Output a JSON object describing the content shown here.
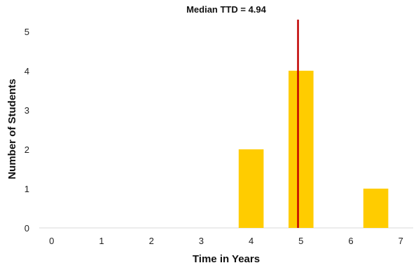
{
  "chart_data": {
    "type": "bar",
    "title": "Median TTD = 4.94",
    "xlabel": "Time in Years",
    "ylabel": "Number of Students",
    "xlim": [
      -0.25,
      7.25
    ],
    "ylim": [
      0,
      5.3
    ],
    "x_ticks": [
      0,
      1,
      2,
      3,
      4,
      5,
      6,
      7
    ],
    "y_ticks": [
      0,
      1,
      2,
      3,
      4,
      5
    ],
    "bar_width": 0.5,
    "series": [
      {
        "x": [
          4.0,
          5.0,
          6.5
        ],
        "values": [
          2,
          4,
          1
        ]
      }
    ],
    "reference_line": {
      "x": 4.94
    },
    "grid": false,
    "legend": "none",
    "colors": {
      "bar": "#FFCC00",
      "reference_line": "#C00000",
      "axis": "#D9D9D9"
    }
  }
}
